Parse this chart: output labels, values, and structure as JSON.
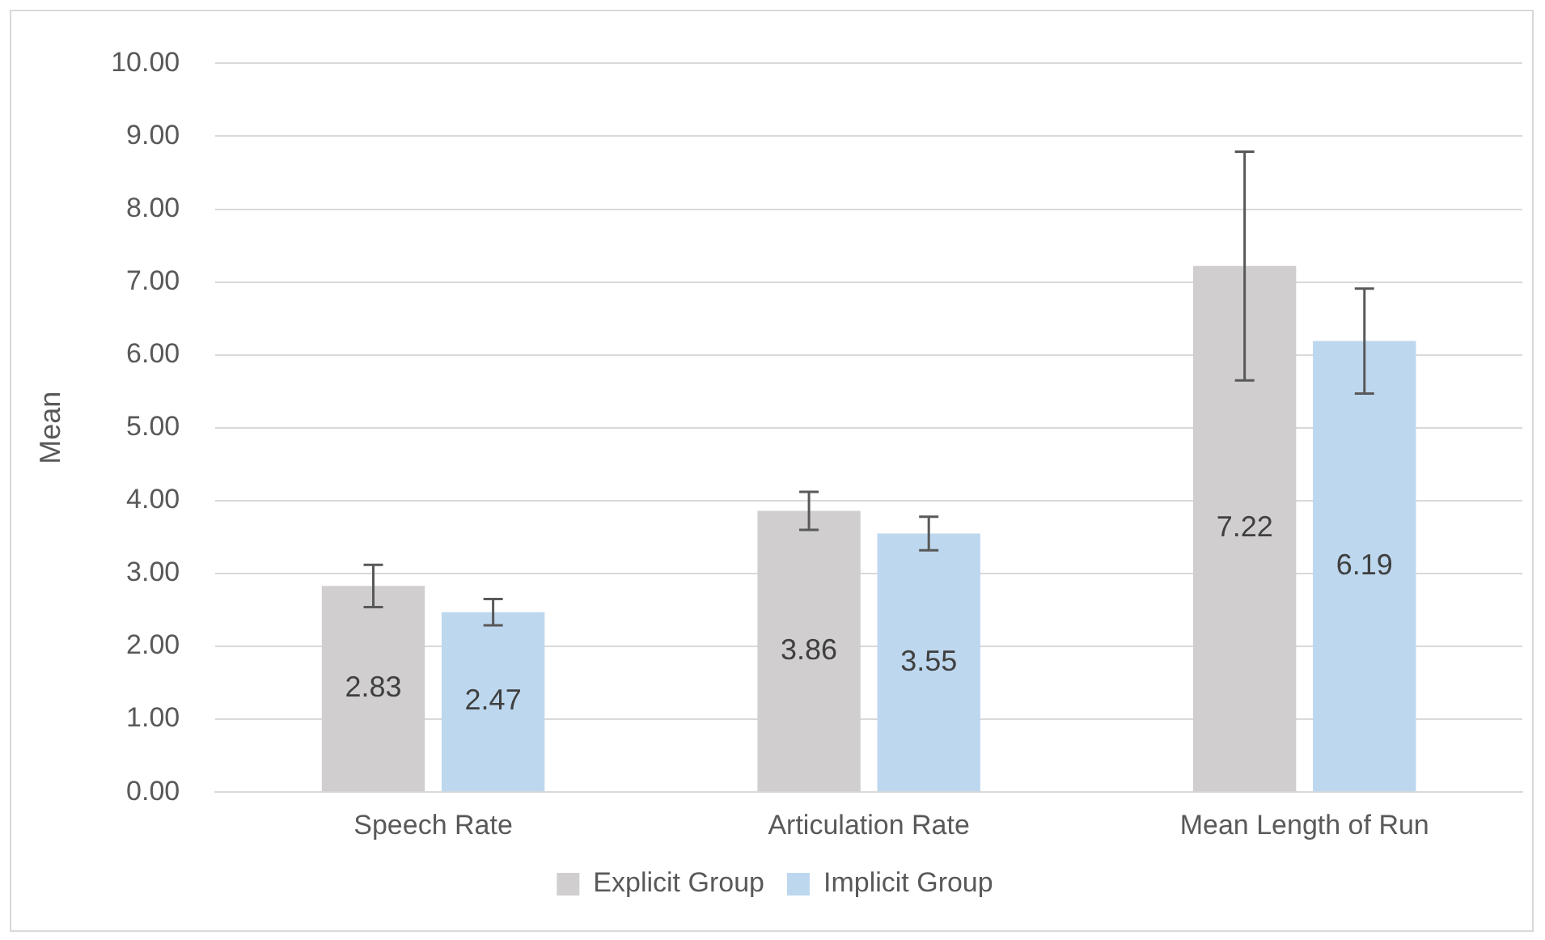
{
  "chart_data": {
    "type": "bar",
    "ylabel": "Mean",
    "categories": [
      "Speech Rate",
      "Articulation Rate",
      "Mean Length of Run"
    ],
    "series": [
      {
        "name": "Explicit Group",
        "color": "#d0cece",
        "values": [
          2.83,
          3.86,
          7.22
        ],
        "errors": [
          0.29,
          0.26,
          1.57
        ]
      },
      {
        "name": "Implicit Group",
        "color": "#bdd7ee",
        "values": [
          2.47,
          3.55,
          6.19
        ],
        "errors": [
          0.18,
          0.23,
          0.72
        ]
      }
    ],
    "ylim": [
      0,
      10
    ],
    "yticks": [
      {
        "value": 0,
        "label": "0.00"
      },
      {
        "value": 1,
        "label": "1.00"
      },
      {
        "value": 2,
        "label": "2.00"
      },
      {
        "value": 3,
        "label": "3.00"
      },
      {
        "value": 4,
        "label": "4.00"
      },
      {
        "value": 5,
        "label": "5.00"
      },
      {
        "value": 6,
        "label": "6.00"
      },
      {
        "value": 7,
        "label": "7.00"
      },
      {
        "value": 8,
        "label": "8.00"
      },
      {
        "value": 9,
        "label": "9.00"
      },
      {
        "value": 10,
        "label": "10.00"
      }
    ],
    "grid": "y",
    "legend": "bottom",
    "data_labels": true
  }
}
